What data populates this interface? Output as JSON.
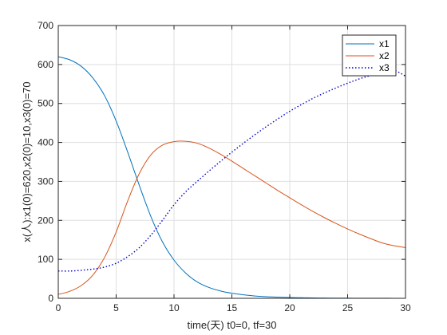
{
  "chart_data": {
    "type": "line",
    "xlabel": "time(天) t0=0, tf=30",
    "ylabel": "x(人):x1(0)=620,x2(0)=10,x3(0)=70",
    "xlim": [
      0,
      30
    ],
    "ylim": [
      0,
      700
    ],
    "xticks": [
      0,
      5,
      10,
      15,
      20,
      25,
      30
    ],
    "yticks": [
      0,
      100,
      200,
      300,
      400,
      500,
      600,
      700
    ],
    "grid": true,
    "legend_position": "top-right",
    "x": [
      0,
      1,
      2,
      3,
      4,
      5,
      6,
      7,
      8,
      9,
      10,
      11,
      12,
      13,
      14,
      15,
      16,
      17,
      18,
      19,
      20,
      21,
      22,
      23,
      24,
      25,
      26,
      27,
      28,
      29,
      30
    ],
    "series": [
      {
        "name": "x1",
        "color": "#0072BD",
        "style": "solid",
        "values": [
          620,
          612,
          595,
          565,
          520,
          455,
          375,
          290,
          210,
          145,
          98,
          65,
          42,
          28,
          19,
          13,
          9,
          6,
          4,
          3,
          2,
          1.5,
          1,
          0.7,
          0.5,
          0.4,
          0.3,
          0.2,
          0.2,
          0.1,
          0.1
        ]
      },
      {
        "name": "x2",
        "color": "#D95319",
        "style": "solid",
        "values": [
          10,
          18,
          33,
          60,
          105,
          170,
          250,
          320,
          368,
          393,
          402,
          403,
          398,
          386,
          370,
          352,
          333,
          314,
          295,
          276,
          258,
          240,
          223,
          207,
          192,
          178,
          165,
          153,
          142,
          135,
          130
        ]
      },
      {
        "name": "x3",
        "color": "#0000CC",
        "style": "dotted",
        "values": [
          70,
          70,
          72,
          75,
          80,
          90,
          107,
          130,
          162,
          200,
          240,
          273,
          300,
          326,
          351,
          375,
          398,
          420,
          441,
          461,
          480,
          497,
          513,
          527,
          540,
          552,
          563,
          572,
          580,
          585,
          570
        ]
      }
    ]
  }
}
